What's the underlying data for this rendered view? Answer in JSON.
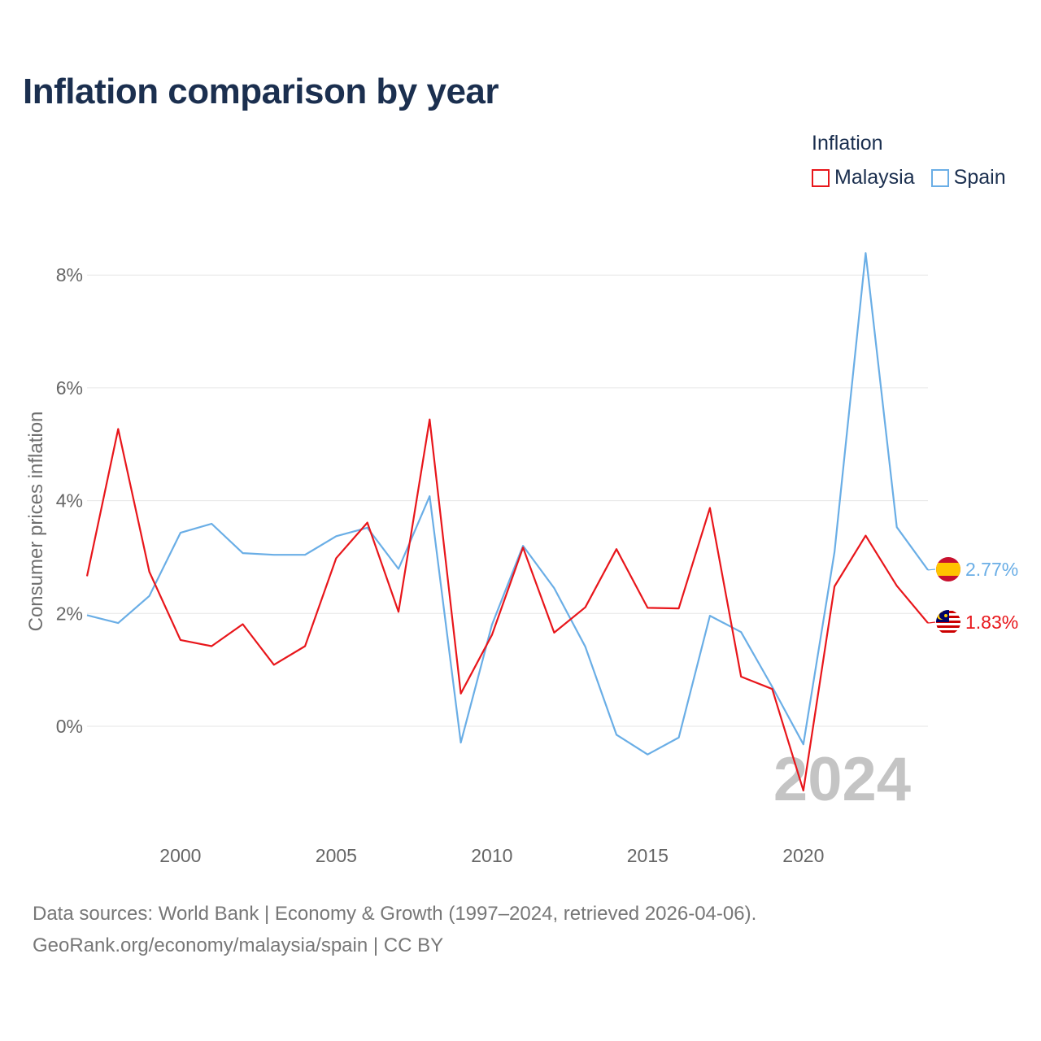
{
  "chart_data": {
    "type": "line",
    "title": "Inflation comparison by year",
    "legend_title": "Inflation",
    "xlabel": "",
    "ylabel": "Consumer prices inflation",
    "x": [
      1997,
      1998,
      1999,
      2000,
      2001,
      2002,
      2003,
      2004,
      2005,
      2006,
      2007,
      2008,
      2009,
      2010,
      2011,
      2012,
      2013,
      2014,
      2015,
      2016,
      2017,
      2018,
      2019,
      2020,
      2021,
      2022,
      2023,
      2024
    ],
    "xlim": [
      1997,
      2024
    ],
    "ylim": [
      -1.8,
      8.8
    ],
    "x_ticks": [
      2000,
      2005,
      2010,
      2015,
      2020
    ],
    "x_tick_labels": [
      "2000",
      "2005",
      "2010",
      "2015",
      "2020"
    ],
    "y_ticks": [
      0,
      2,
      4,
      6,
      8
    ],
    "y_tick_labels": [
      "0%",
      "2%",
      "4%",
      "6%",
      "8%"
    ],
    "grid": true,
    "legend_position": "top-right",
    "year_watermark": "2024",
    "series": [
      {
        "name": "Malaysia",
        "color": "#e8161b",
        "end_label": "1.83%",
        "flag_icon": "malaysia-flag-icon",
        "values": [
          2.66,
          5.27,
          2.74,
          1.53,
          1.42,
          1.81,
          1.09,
          1.42,
          2.98,
          3.61,
          2.03,
          5.44,
          0.58,
          1.62,
          3.17,
          1.66,
          2.11,
          3.14,
          2.1,
          2.09,
          3.87,
          0.88,
          0.66,
          -1.14,
          2.48,
          3.38,
          2.49,
          1.83
        ]
      },
      {
        "name": "Spain",
        "color": "#6aaee6",
        "end_label": "2.77%",
        "flag_icon": "spain-flag-icon",
        "values": [
          1.97,
          1.83,
          2.31,
          3.43,
          3.59,
          3.07,
          3.04,
          3.04,
          3.37,
          3.52,
          2.79,
          4.08,
          -0.29,
          1.8,
          3.2,
          2.45,
          1.41,
          -0.15,
          -0.5,
          -0.2,
          1.96,
          1.67,
          0.7,
          -0.32,
          3.09,
          8.39,
          3.53,
          2.77
        ]
      }
    ]
  },
  "footer": {
    "sources_line": "Data sources: World Bank | Economy & Growth (1997–2024, retrieved 2026-04-06).",
    "credit_line": "GeoRank.org/economy/malaysia/spain | CC BY"
  }
}
